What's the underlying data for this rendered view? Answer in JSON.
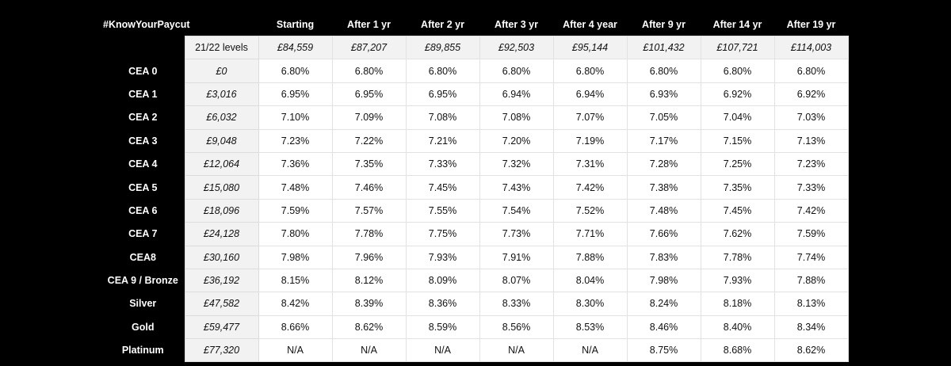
{
  "title": "#KnowYourPaycut",
  "headers": [
    "Starting",
    "After 1 yr",
    "After 2 yr",
    "After 3 yr",
    "After 4 year",
    "After 9 yr",
    "After 14 yr",
    "After 19 yr"
  ],
  "salary_row": {
    "label": "21/22 levels",
    "values": [
      "£84,559",
      "£87,207",
      "£89,855",
      "£92,503",
      "£95,144",
      "£101,432",
      "£107,721",
      "£114,003"
    ]
  },
  "rows": [
    {
      "label": "CEA 0",
      "amount": "£0",
      "values": [
        "6.80%",
        "6.80%",
        "6.80%",
        "6.80%",
        "6.80%",
        "6.80%",
        "6.80%",
        "6.80%"
      ]
    },
    {
      "label": "CEA 1",
      "amount": "£3,016",
      "values": [
        "6.95%",
        "6.95%",
        "6.95%",
        "6.94%",
        "6.94%",
        "6.93%",
        "6.92%",
        "6.92%"
      ]
    },
    {
      "label": "CEA 2",
      "amount": "£6,032",
      "values": [
        "7.10%",
        "7.09%",
        "7.08%",
        "7.08%",
        "7.07%",
        "7.05%",
        "7.04%",
        "7.03%"
      ]
    },
    {
      "label": "CEA 3",
      "amount": "£9,048",
      "values": [
        "7.23%",
        "7.22%",
        "7.21%",
        "7.20%",
        "7.19%",
        "7.17%",
        "7.15%",
        "7.13%"
      ]
    },
    {
      "label": "CEA 4",
      "amount": "£12,064",
      "values": [
        "7.36%",
        "7.35%",
        "7.33%",
        "7.32%",
        "7.31%",
        "7.28%",
        "7.25%",
        "7.23%"
      ]
    },
    {
      "label": "CEA 5",
      "amount": "£15,080",
      "values": [
        "7.48%",
        "7.46%",
        "7.45%",
        "7.43%",
        "7.42%",
        "7.38%",
        "7.35%",
        "7.33%"
      ]
    },
    {
      "label": "CEA 6",
      "amount": "£18,096",
      "values": [
        "7.59%",
        "7.57%",
        "7.55%",
        "7.54%",
        "7.52%",
        "7.48%",
        "7.45%",
        "7.42%"
      ]
    },
    {
      "label": "CEA 7",
      "amount": "£24,128",
      "values": [
        "7.80%",
        "7.78%",
        "7.75%",
        "7.73%",
        "7.71%",
        "7.66%",
        "7.62%",
        "7.59%"
      ]
    },
    {
      "label": "CEA8",
      "amount": "£30,160",
      "values": [
        "7.98%",
        "7.96%",
        "7.93%",
        "7.91%",
        "7.88%",
        "7.83%",
        "7.78%",
        "7.74%"
      ]
    },
    {
      "label": "CEA 9 / Bronze",
      "amount": "£36,192",
      "values": [
        "8.15%",
        "8.12%",
        "8.09%",
        "8.07%",
        "8.04%",
        "7.98%",
        "7.93%",
        "7.88%"
      ]
    },
    {
      "label": "Silver",
      "amount": "£47,582",
      "values": [
        "8.42%",
        "8.39%",
        "8.36%",
        "8.33%",
        "8.30%",
        "8.24%",
        "8.18%",
        "8.13%"
      ]
    },
    {
      "label": "Gold",
      "amount": "£59,477",
      "values": [
        "8.66%",
        "8.62%",
        "8.59%",
        "8.56%",
        "8.53%",
        "8.46%",
        "8.40%",
        "8.34%"
      ]
    },
    {
      "label": "Platinum",
      "amount": "£77,320",
      "values": [
        "N/A",
        "N/A",
        "N/A",
        "N/A",
        "N/A",
        "8.75%",
        "8.68%",
        "8.62%"
      ]
    }
  ]
}
